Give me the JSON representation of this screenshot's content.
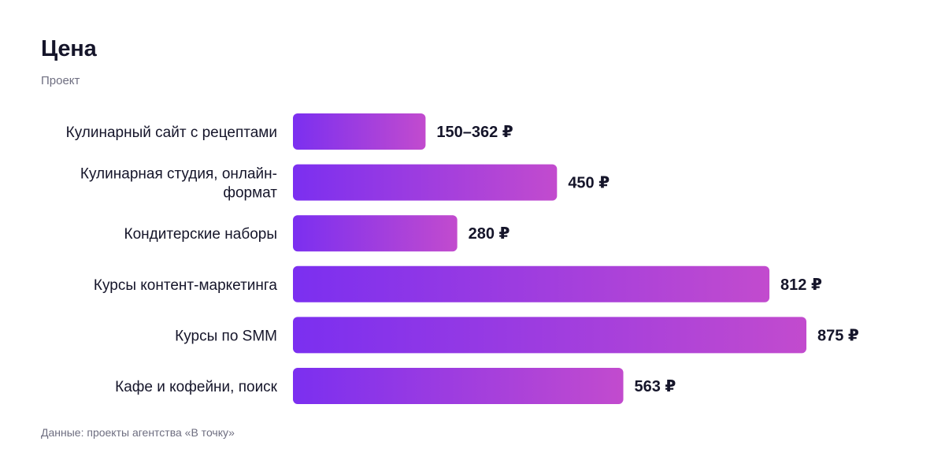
{
  "title": "Цена",
  "subtitle": "Проект",
  "footnote": "Данные: проекты агентства «В точку»",
  "colors": {
    "bar_start": "#7b2ff0",
    "bar_end": "#c24bce",
    "text": "#15152a",
    "muted": "#6e6e80"
  },
  "chart_data": {
    "type": "bar",
    "orientation": "horizontal",
    "title": "Цена",
    "subtitle": "Проект",
    "categories": [
      [
        "Кулинарный сайт с рецептами"
      ],
      [
        "Кулинарная студия, онлайн-",
        "формат"
      ],
      [
        "Кондитерские наборы"
      ],
      [
        "Курсы контент-маркетинга"
      ],
      [
        "Курсы по SMM"
      ],
      [
        "Кафе и кофейни, поиск"
      ]
    ],
    "values": [
      226,
      450,
      280,
      812,
      875,
      563
    ],
    "value_labels": [
      "150–362 ₽",
      "450 ₽",
      "280 ₽",
      "812 ₽",
      "875 ₽",
      "563 ₽"
    ],
    "range_values": [
      [
        150,
        362
      ],
      null,
      null,
      null,
      null,
      null
    ],
    "unit": "₽",
    "xlim": [
      0,
      875
    ],
    "grid": false,
    "legend": "none"
  }
}
